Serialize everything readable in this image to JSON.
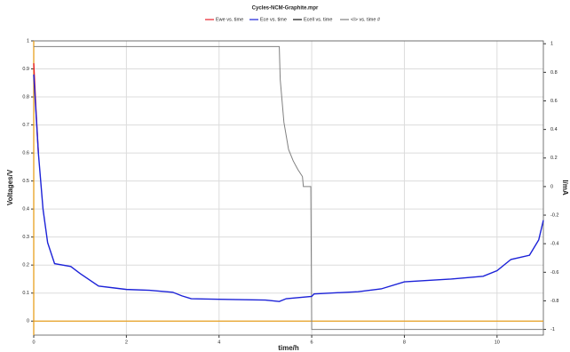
{
  "chart_data": {
    "type": "line",
    "title": "Cycles-NCM-Graphite.mpr",
    "x_label": "time/h",
    "y_label": "Voltages/V",
    "y2_label": "I/mA",
    "xlim": [
      0,
      11
    ],
    "xticks": [
      0,
      2,
      4,
      6,
      8,
      10
    ],
    "ylim": [
      -0.05,
      1
    ],
    "yticks": [
      0,
      0.1,
      0.2,
      0.3,
      0.4,
      0.5,
      0.6,
      0.7,
      0.8,
      0.9,
      1
    ],
    "y2lim": [
      -1.04,
      1.02
    ],
    "y2ticks": [
      -1,
      -0.8,
      -0.6,
      -0.4,
      -0.2,
      0,
      0.2,
      0.4,
      0.6,
      0.8,
      1
    ],
    "grid": true,
    "series": [
      {
        "name": "Ewe vs. time",
        "color": "#e8202a",
        "x": [
          0,
          0.05,
          0.1
        ],
        "values": [
          0.92,
          0.75,
          0.6
        ]
      },
      {
        "name": "Ece vs. time",
        "color": "#1c22d8",
        "x": [
          0,
          0.1,
          0.2,
          0.3,
          0.45,
          0.8,
          1.0,
          1.4,
          2.0,
          2.5,
          3.0,
          3.2,
          3.4,
          4.0,
          5.0,
          5.3,
          5.45,
          6.0,
          6.05,
          7.0,
          7.5,
          8.0,
          9.0,
          9.7,
          10.0,
          10.3,
          10.7,
          10.9,
          11.0
        ],
        "values": [
          0.88,
          0.6,
          0.4,
          0.28,
          0.205,
          0.195,
          0.17,
          0.125,
          0.113,
          0.11,
          0.103,
          0.09,
          0.08,
          0.078,
          0.075,
          0.07,
          0.08,
          0.088,
          0.097,
          0.105,
          0.115,
          0.14,
          0.15,
          0.16,
          0.18,
          0.22,
          0.235,
          0.29,
          0.36
        ]
      },
      {
        "name": "Ecell vs. time",
        "color": "#111111",
        "x": [
          0,
          11
        ],
        "values": [
          null,
          null
        ]
      },
      {
        "name": "<I> vs. time #",
        "color": "#808080",
        "axis": "y2",
        "x": [
          0,
          5.3,
          5.32,
          5.4,
          5.5,
          5.6,
          5.7,
          5.8,
          5.82,
          5.98,
          6.0,
          11.0
        ],
        "values": [
          0.98,
          0.98,
          0.75,
          0.45,
          0.26,
          0.18,
          0.12,
          0.07,
          0.0,
          0.0,
          -1.0,
          -1.0
        ]
      }
    ]
  }
}
